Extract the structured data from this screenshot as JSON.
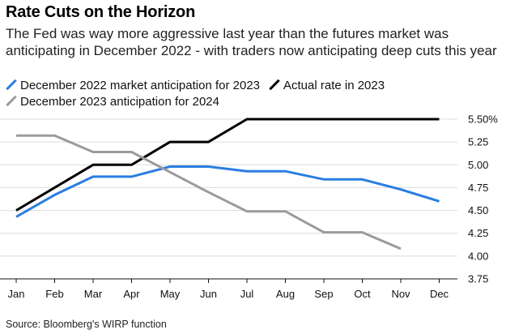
{
  "header": {
    "title": "Rate Cuts on the Horizon",
    "subtitle": "The Fed was way more aggressive last year than the futures market was anticipating in December 2022 - with traders now anticipating deep cuts this year"
  },
  "footer": {
    "source": "Source: Bloomberg's WIRP function"
  },
  "chart_data": {
    "type": "line",
    "title": "Rate Cuts on the Horizon",
    "xlabel": "",
    "ylabel": "",
    "categories": [
      "Jan",
      "Feb",
      "Mar",
      "Apr",
      "May",
      "Jun",
      "Jul",
      "Aug",
      "Sep",
      "Oct",
      "Nov",
      "Dec"
    ],
    "ylim": [
      3.75,
      5.5
    ],
    "yticks": [
      "5.50%",
      "5.25",
      "5.00",
      "4.75",
      "4.50",
      "4.25",
      "4.00",
      "3.75"
    ],
    "grid": true,
    "y_axis_side": "right",
    "legend_position": "top",
    "series": [
      {
        "name": "December 2022 market anticipation for 2023",
        "color": "#2a7de1",
        "values": [
          4.43,
          4.67,
          4.87,
          4.87,
          4.98,
          4.98,
          4.93,
          4.93,
          4.84,
          4.84,
          4.73,
          4.6
        ]
      },
      {
        "name": "Actual rate in 2023",
        "color": "#000000",
        "values": [
          4.5,
          4.75,
          5.0,
          5.0,
          5.25,
          5.25,
          5.5,
          5.5,
          5.5,
          5.5,
          5.5,
          5.5
        ]
      },
      {
        "name": "December 2023 anticipation for 2024",
        "color": "#9b9b9b",
        "values": [
          5.32,
          5.32,
          5.14,
          5.14,
          4.92,
          4.7,
          4.49,
          4.49,
          4.26,
          4.26,
          4.08,
          null
        ]
      }
    ]
  }
}
